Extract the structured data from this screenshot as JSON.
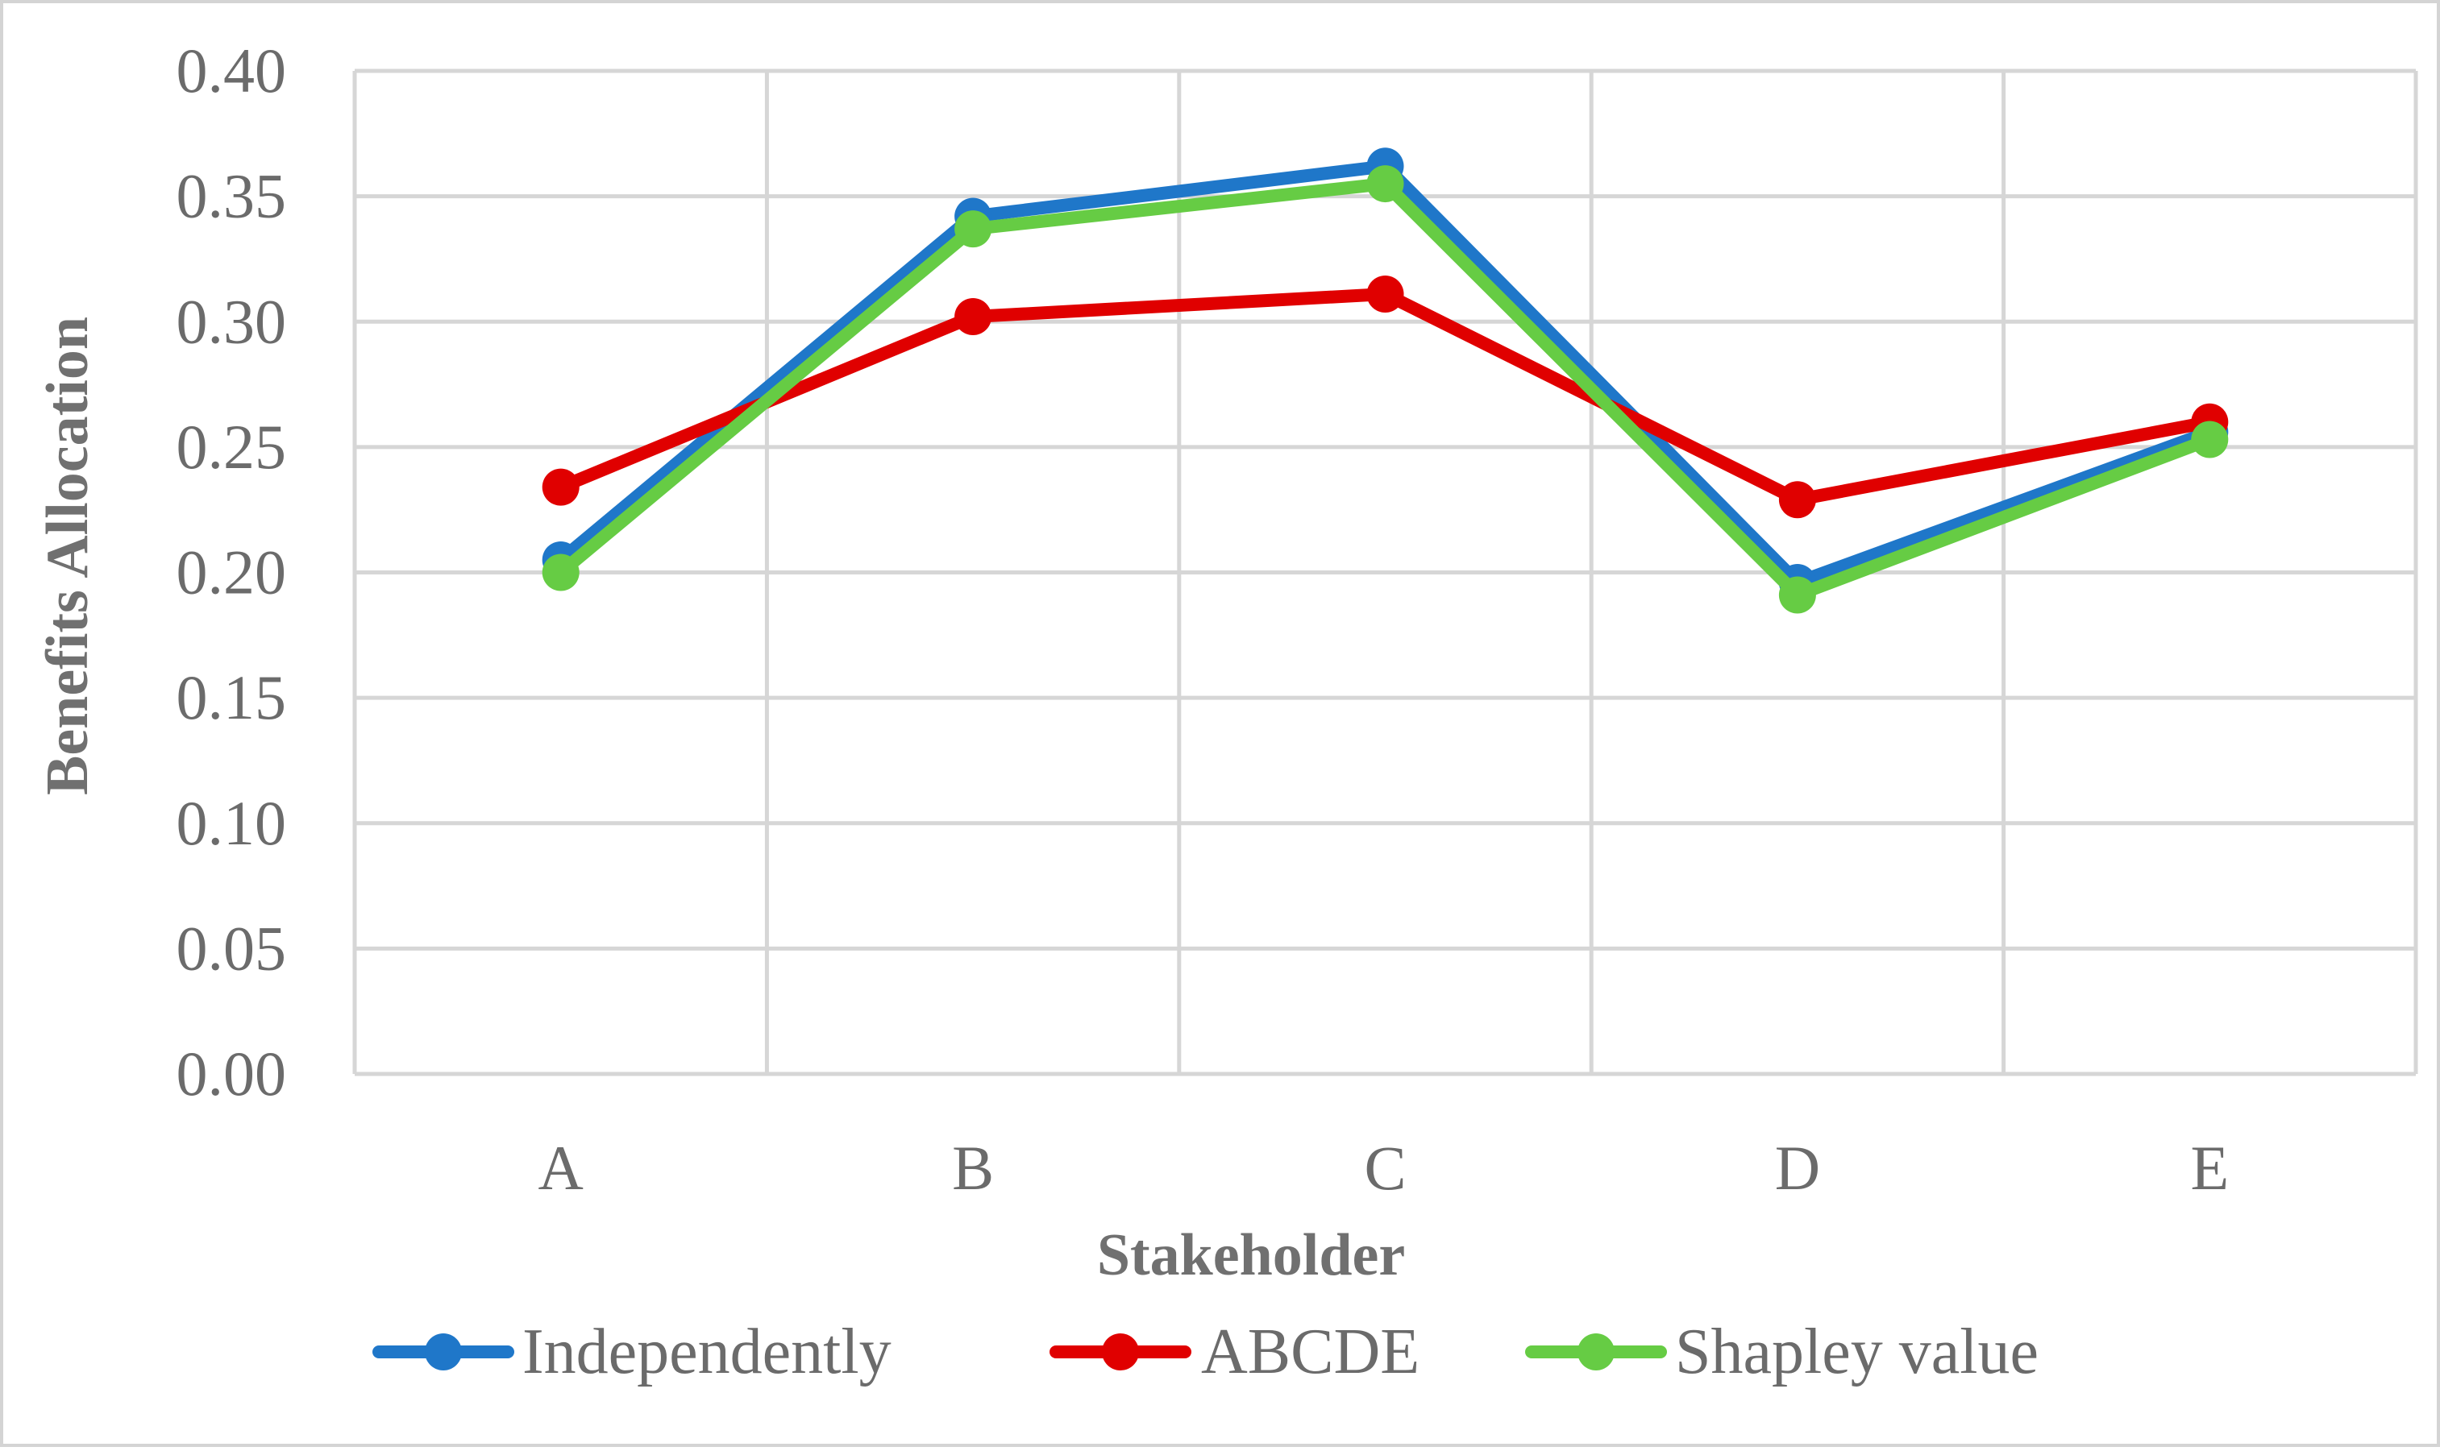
{
  "chart_data": {
    "type": "line",
    "title": "",
    "xlabel": "Stakeholder",
    "ylabel": "Benefits Allocation",
    "categories": [
      "A",
      "B",
      "C",
      "D",
      "E"
    ],
    "ylim": [
      0,
      0.4
    ],
    "yticks": [
      "0.00",
      "0.05",
      "0.10",
      "0.15",
      "0.20",
      "0.25",
      "0.30",
      "0.35",
      "0.40"
    ],
    "grid": true,
    "legend_position": "bottom",
    "series": [
      {
        "name": "Independently",
        "color": "#1f77c9",
        "values": [
          0.205,
          0.342,
          0.362,
          0.196,
          0.256
        ]
      },
      {
        "name": "ABCDE",
        "color": "#e00000",
        "values": [
          0.234,
          0.302,
          0.311,
          0.229,
          0.26
        ]
      },
      {
        "name": "Shapley value",
        "color": "#66cc44",
        "values": [
          0.2,
          0.337,
          0.355,
          0.191,
          0.253
        ]
      }
    ]
  }
}
